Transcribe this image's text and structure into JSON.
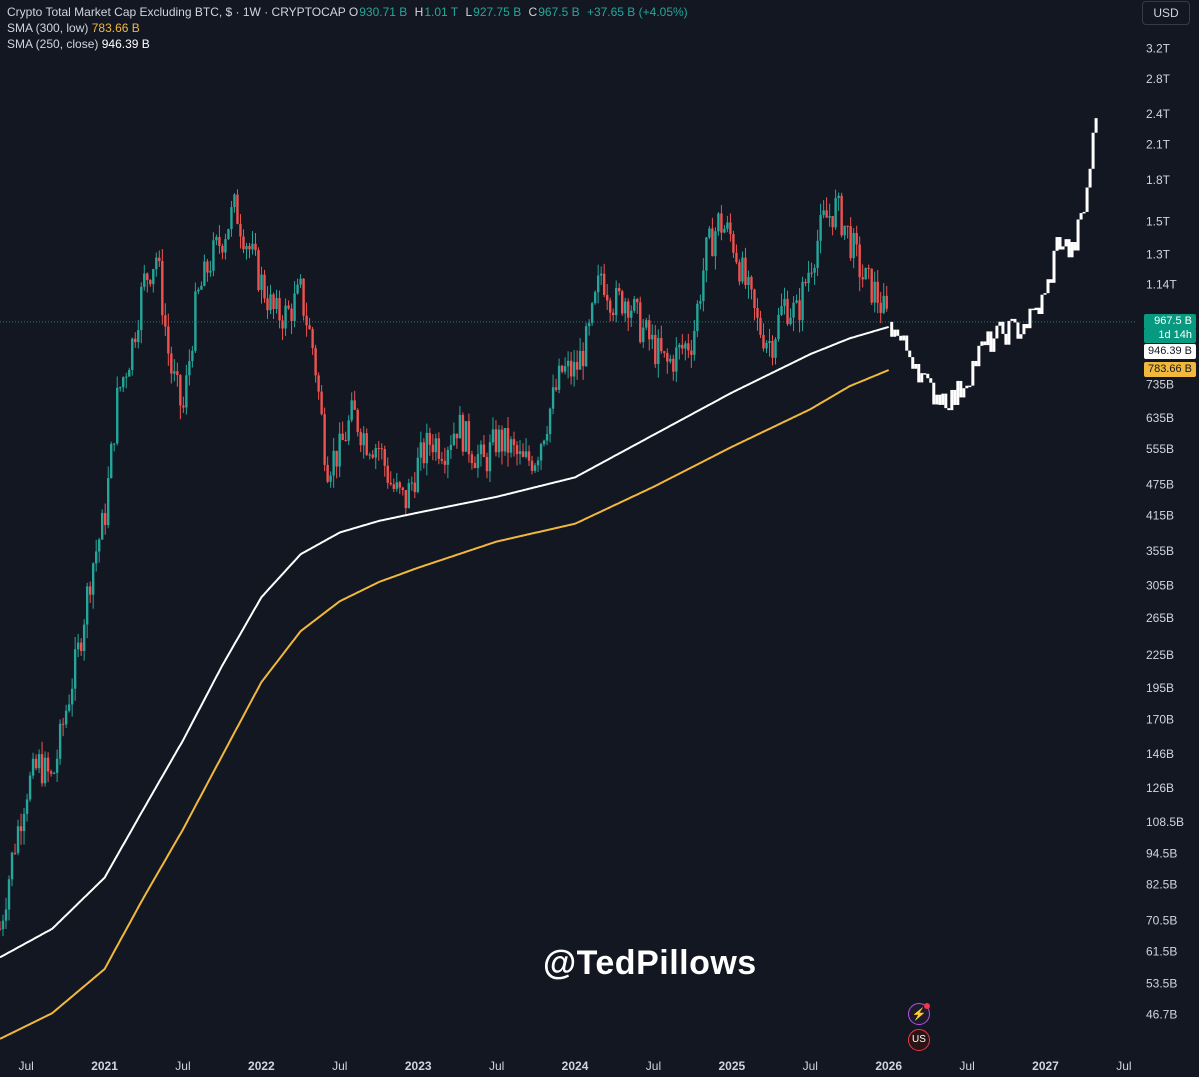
{
  "legend": {
    "title": "Crypto Total Market Cap Excluding BTC, $ · 1W · CRYPTOCAP",
    "o_label": "O",
    "o_value": "930.71 B",
    "h_label": "H",
    "h_value": "1.01 T",
    "l_label": "L",
    "l_value": "927.75 B",
    "c_label": "C",
    "c_value": "967.5 B",
    "change": "+37.65 B (+4.05%)",
    "sma300_label": "SMA (300, low)",
    "sma300_value": "783.66 B",
    "sma250_label": "SMA (250, close)",
    "sma250_value": "946.39 B"
  },
  "currency_button": "USD",
  "watermark": "@TedPillows",
  "badges": {
    "price": "967.5 B",
    "timer": "1d 14h",
    "sma250": "946.39 B",
    "sma300": "783.66 B"
  },
  "colors": {
    "background": "#131722",
    "up": "#26a69a",
    "down": "#ef5350",
    "projection": "#ffffff",
    "sma250": "#ffffff",
    "sma300": "#f0b93d",
    "axis_text": "#d1d4dc"
  },
  "icons": {
    "event1": "flash-icon",
    "event2": "us-flag-icon"
  },
  "chart_data": {
    "type": "candlestick",
    "scale": "log",
    "interval": "1W",
    "ylim": [
      40000000000,
      3500000000000
    ],
    "y_tick_labels": [
      "3.2T",
      "2.8T",
      "2.4T",
      "2.1T",
      "1.8T",
      "1.5T",
      "1.3T",
      "1.14T",
      "735B",
      "635B",
      "555B",
      "475B",
      "415B",
      "355B",
      "305B",
      "265B",
      "225B",
      "195B",
      "170B",
      "146B",
      "126B",
      "108.5B",
      "94.5B",
      "82.5B",
      "70.5B",
      "61.5B",
      "53.5B",
      "46.7B"
    ],
    "y_tick_values": [
      3200,
      2800,
      2400,
      2100,
      1800,
      1500,
      1300,
      1140,
      735,
      635,
      555,
      475,
      415,
      355,
      305,
      265,
      225,
      195,
      170,
      146,
      126,
      108.5,
      94.5,
      82.5,
      70.5,
      61.5,
      53.5,
      46.7
    ],
    "y_unit": "billions USD",
    "x_tick_labels": [
      "Jul",
      "2021",
      "Jul",
      "2022",
      "Jul",
      "2023",
      "Jul",
      "2024",
      "Jul",
      "2025",
      "Jul",
      "2026",
      "Jul",
      "2027",
      "Jul"
    ],
    "x_tick_dates": [
      "2020-07",
      "2021-01",
      "2021-07",
      "2022-01",
      "2022-07",
      "2023-01",
      "2023-07",
      "2024-01",
      "2024-07",
      "2025-01",
      "2025-07",
      "2026-01",
      "2026-07",
      "2027-01",
      "2027-07"
    ],
    "x_range": [
      "2020-05",
      "2027-08"
    ],
    "price_line": 967.5,
    "series": [
      {
        "name": "Crypto Total Market Cap Excluding BTC",
        "role": "price",
        "points": [
          [
            "2020-05",
            68
          ],
          [
            "2020-06",
            95
          ],
          [
            "2020-07",
            125
          ],
          [
            "2020-08",
            140
          ],
          [
            "2020-09",
            130
          ],
          [
            "2020-10",
            175
          ],
          [
            "2020-11",
            230
          ],
          [
            "2020-12",
            330
          ],
          [
            "2021-01",
            410
          ],
          [
            "2021-02",
            700
          ],
          [
            "2021-03",
            850
          ],
          [
            "2021-04",
            1150
          ],
          [
            "2021-05",
            1300
          ],
          [
            "2021-06",
            800
          ],
          [
            "2021-07",
            650
          ],
          [
            "2021-08",
            1050
          ],
          [
            "2021-09",
            1250
          ],
          [
            "2021-10",
            1400
          ],
          [
            "2021-11",
            1600
          ],
          [
            "2021-12",
            1350
          ],
          [
            "2022-01",
            1150
          ],
          [
            "2022-02",
            1000
          ],
          [
            "2022-03",
            1000
          ],
          [
            "2022-04",
            1100
          ],
          [
            "2022-05",
            850
          ],
          [
            "2022-06",
            520
          ],
          [
            "2022-07",
            550
          ],
          [
            "2022-08",
            650
          ],
          [
            "2022-09",
            580
          ],
          [
            "2022-10",
            560
          ],
          [
            "2022-11",
            470
          ],
          [
            "2022-12",
            440
          ],
          [
            "2023-01",
            520
          ],
          [
            "2023-02",
            580
          ],
          [
            "2023-03",
            560
          ],
          [
            "2023-04",
            620
          ],
          [
            "2023-05",
            560
          ],
          [
            "2023-06",
            520
          ],
          [
            "2023-07",
            580
          ],
          [
            "2023-08",
            560
          ],
          [
            "2023-09",
            520
          ],
          [
            "2023-10",
            540
          ],
          [
            "2023-11",
            650
          ],
          [
            "2023-12",
            780
          ],
          [
            "2024-01",
            780
          ],
          [
            "2024-02",
            900
          ],
          [
            "2024-03",
            1200
          ],
          [
            "2024-04",
            1050
          ],
          [
            "2024-05",
            1080
          ],
          [
            "2024-06",
            950
          ],
          [
            "2024-07",
            870
          ],
          [
            "2024-08",
            800
          ],
          [
            "2024-09",
            850
          ],
          [
            "2024-10",
            900
          ],
          [
            "2024-11",
            1300
          ],
          [
            "2024-12",
            1500
          ],
          [
            "2025-01",
            1400
          ],
          [
            "2025-02",
            1150
          ],
          [
            "2025-03",
            950
          ],
          [
            "2025-04",
            880
          ],
          [
            "2025-05",
            1050
          ],
          [
            "2025-06",
            1000
          ],
          [
            "2025-07",
            1250
          ],
          [
            "2025-08",
            1500
          ],
          [
            "2025-09",
            1600
          ],
          [
            "2025-10",
            1400
          ],
          [
            "2025-11",
            1180
          ],
          [
            "2025-12",
            1100
          ],
          [
            "2026-01",
            967.5
          ]
        ]
      },
      {
        "name": "Projection",
        "role": "projection",
        "points": [
          [
            "2026-01",
            967.5
          ],
          [
            "2026-02",
            880
          ],
          [
            "2026-03",
            820
          ],
          [
            "2026-04",
            720
          ],
          [
            "2026-05",
            700
          ],
          [
            "2026-06",
            690
          ],
          [
            "2026-07",
            760
          ],
          [
            "2026-08",
            850
          ],
          [
            "2026-09",
            900
          ],
          [
            "2026-10",
            930
          ],
          [
            "2026-11",
            940
          ],
          [
            "2026-12",
            990
          ],
          [
            "2027-01",
            1080
          ],
          [
            "2027-02",
            1400
          ],
          [
            "2027-03",
            1300
          ],
          [
            "2027-04",
            1600
          ],
          [
            "2027-05",
            2500
          ]
        ]
      },
      {
        "name": "SMA (250, close)",
        "role": "sma250",
        "points": [
          [
            "2020-05",
            60
          ],
          [
            "2020-09",
            68
          ],
          [
            "2021-01",
            85
          ],
          [
            "2021-04",
            115
          ],
          [
            "2021-07",
            155
          ],
          [
            "2021-10",
            215
          ],
          [
            "2022-01",
            290
          ],
          [
            "2022-04",
            350
          ],
          [
            "2022-07",
            385
          ],
          [
            "2022-10",
            405
          ],
          [
            "2023-01",
            420
          ],
          [
            "2023-07",
            450
          ],
          [
            "2024-01",
            490
          ],
          [
            "2024-07",
            590
          ],
          [
            "2025-01",
            710
          ],
          [
            "2025-07",
            840
          ],
          [
            "2025-10",
            900
          ],
          [
            "2026-01",
            946.39
          ]
        ]
      },
      {
        "name": "SMA (300, low)",
        "role": "sma300",
        "points": [
          [
            "2020-05",
            42
          ],
          [
            "2020-09",
            47
          ],
          [
            "2021-01",
            57
          ],
          [
            "2021-04",
            78
          ],
          [
            "2021-07",
            105
          ],
          [
            "2021-10",
            145
          ],
          [
            "2022-01",
            200
          ],
          [
            "2022-04",
            250
          ],
          [
            "2022-07",
            285
          ],
          [
            "2022-10",
            310
          ],
          [
            "2023-01",
            330
          ],
          [
            "2023-07",
            370
          ],
          [
            "2024-01",
            400
          ],
          [
            "2024-07",
            470
          ],
          [
            "2025-01",
            560
          ],
          [
            "2025-07",
            660
          ],
          [
            "2025-10",
            730
          ],
          [
            "2026-01",
            783.66
          ]
        ]
      }
    ]
  }
}
